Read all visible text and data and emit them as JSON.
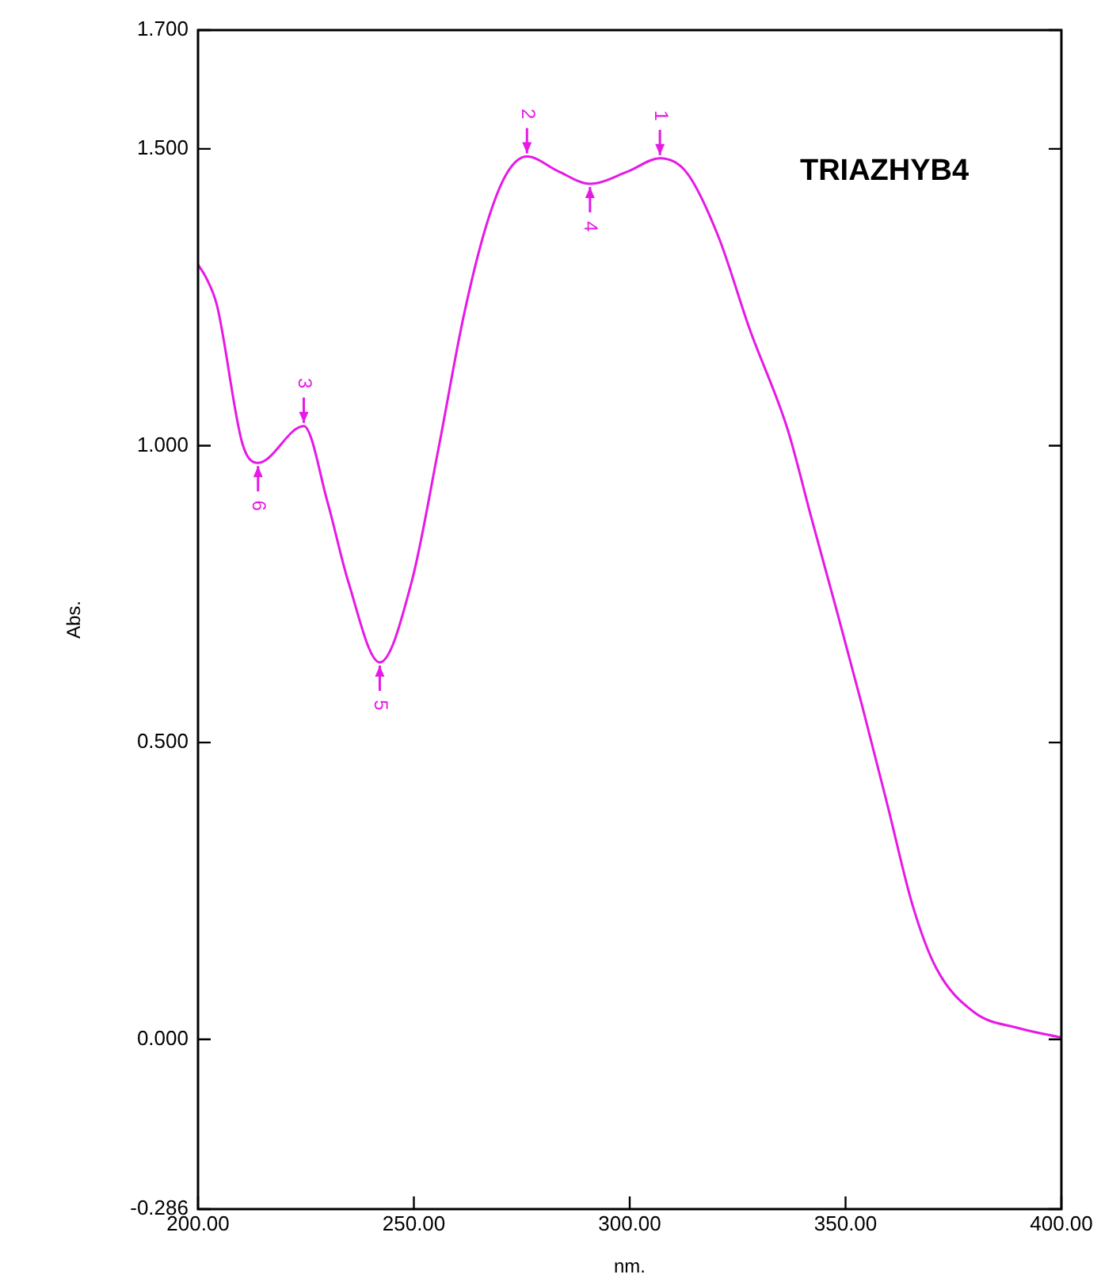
{
  "chart_data": {
    "type": "line",
    "title": "TRIAZHYB4",
    "xlabel": "nm.",
    "ylabel": "Abs.",
    "x": [
      200,
      201.8,
      204.4,
      210.3,
      213.9,
      224.5,
      230,
      234.8,
      242.1,
      249.5,
      255.7,
      261.5,
      266.7,
      271.4,
      276.2,
      283.5,
      290.8,
      299.6,
      307,
      313.2,
      320.5,
      327.8,
      336.6,
      342.1,
      348,
      353.8,
      359.7,
      365.6,
      371,
      379.9,
      390,
      400
    ],
    "series": [
      {
        "color": "#e619e6",
        "values": [
          1.305,
          1.284,
          1.236,
          1.003,
          0.971,
          1.033,
          0.905,
          0.771,
          0.635,
          0.771,
          0.995,
          1.217,
          1.369,
          1.457,
          1.487,
          1.462,
          1.441,
          1.462,
          1.484,
          1.46,
          1.353,
          1.196,
          1.027,
          0.878,
          0.721,
          0.563,
          0.395,
          0.224,
          0.12,
          0.045,
          0.019,
          0.003
        ]
      }
    ],
    "xlim": [
      200,
      400
    ],
    "xticks": [
      {
        "value": 200,
        "label": "200.00"
      },
      {
        "value": 250,
        "label": "250.00"
      },
      {
        "value": 300,
        "label": "300.00"
      },
      {
        "value": 350,
        "label": "350.00"
      },
      {
        "value": 400,
        "label": "400.00"
      }
    ],
    "ylim": [
      -0.286,
      1.7
    ],
    "yticks": [
      -0.286,
      {
        "value": 0,
        "label": "0.000"
      },
      {
        "value": 0.5,
        "label": "0.500"
      },
      {
        "value": 1,
        "label": "1.000"
      },
      {
        "value": 1.5,
        "label": "1.500"
      },
      {
        "value": 1.7,
        "label": "1.700"
      }
    ],
    "annotations": [
      {
        "text": "1",
        "x": 307,
        "y": 1.484
      },
      {
        "text": "2",
        "x": 276.2,
        "y": 1.487
      },
      {
        "text": "3",
        "x": 224.5,
        "y": 1.033
      },
      {
        "text": "4",
        "x": 290.8,
        "y": 1.441
      },
      {
        "text": "5",
        "x": 242.1,
        "y": 0.635
      },
      {
        "text": "6",
        "x": 213.9,
        "y": 0.971
      }
    ],
    "grid": false,
    "legend": false,
    "marker": "none",
    "line_style": "solid"
  }
}
